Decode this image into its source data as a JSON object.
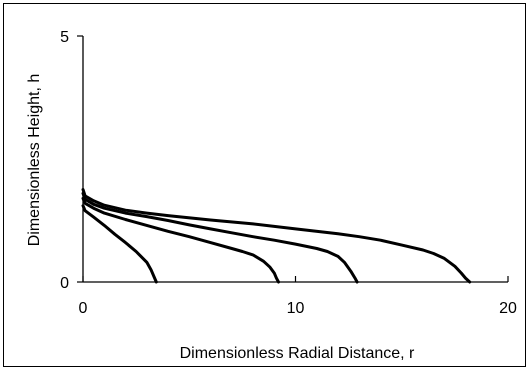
{
  "chart_data": {
    "type": "line",
    "title": "",
    "xlabel": "Dimensionless Radial Distance, r",
    "ylabel": "Dimensionless Height, h",
    "xlim": [
      0,
      20
    ],
    "ylim": [
      0,
      5
    ],
    "xticks": [
      0,
      10,
      20
    ],
    "yticks": [
      0,
      5
    ],
    "xtick_labels": [
      "0",
      "10",
      "20"
    ],
    "ytick_labels": [
      "0",
      "5"
    ],
    "grid": false,
    "legend": "none",
    "line_color": "#000000",
    "series": [
      {
        "x": [
          0,
          0.1,
          0.5,
          1.0,
          1.5,
          2.0,
          2.5,
          3.0,
          3.2,
          3.35,
          3.45
        ],
        "y": [
          1.55,
          1.45,
          1.32,
          1.15,
          0.97,
          0.8,
          0.62,
          0.4,
          0.25,
          0.1,
          0
        ]
      },
      {
        "x": [
          0,
          0.1,
          0.5,
          1,
          2,
          3,
          4,
          5,
          6,
          7,
          7.5,
          8,
          8.5,
          8.8,
          9.0,
          9.1,
          9.2
        ],
        "y": [
          1.7,
          1.6,
          1.5,
          1.4,
          1.27,
          1.15,
          1.03,
          0.92,
          0.8,
          0.68,
          0.62,
          0.55,
          0.42,
          0.3,
          0.18,
          0.08,
          0
        ]
      },
      {
        "x": [
          0,
          0.1,
          0.5,
          1,
          2,
          3,
          4,
          5,
          6,
          7,
          8,
          9,
          10,
          11,
          11.5,
          12.0,
          12.3,
          12.6,
          12.8,
          12.9
        ],
        "y": [
          1.8,
          1.68,
          1.58,
          1.5,
          1.4,
          1.33,
          1.25,
          1.16,
          1.08,
          1.0,
          0.92,
          0.85,
          0.77,
          0.68,
          0.62,
          0.52,
          0.4,
          0.22,
          0.08,
          0
        ]
      },
      {
        "x": [
          0,
          0.1,
          0.5,
          1,
          2,
          3,
          4,
          6,
          8,
          10,
          12,
          13,
          14,
          15,
          16,
          16.5,
          17,
          17.5,
          17.8,
          18.0,
          18.2
        ],
        "y": [
          1.88,
          1.75,
          1.65,
          1.56,
          1.46,
          1.4,
          1.35,
          1.26,
          1.18,
          1.08,
          0.98,
          0.92,
          0.85,
          0.75,
          0.65,
          0.58,
          0.48,
          0.32,
          0.18,
          0.08,
          0
        ]
      }
    ]
  }
}
